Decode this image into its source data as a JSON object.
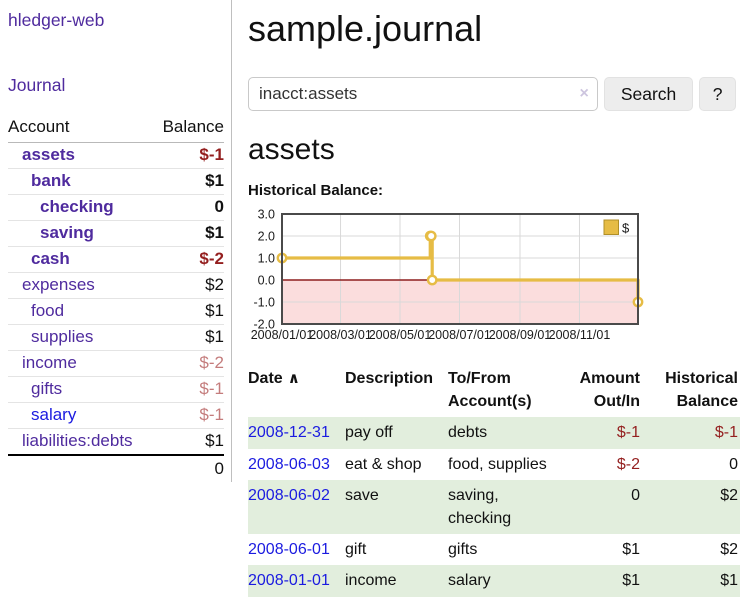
{
  "colors": {
    "purple": "#4f2b9e",
    "blue": "#1b1be0",
    "neg_strong": "#941f1f",
    "neg_soft": "#c47c7c",
    "row_green": "#e2eedd",
    "chart_gold": "#e6bc45",
    "chart_gold_border": "#b08f28",
    "chart_negative_fill": "#fbdddd",
    "chart_zero_line": "#8e1f1f",
    "chart_grid": "#d9d9d9",
    "chart_border": "#4a4a4a"
  },
  "sidebar": {
    "brand": "hledger-web",
    "nav": [
      {
        "label": "Journal"
      }
    ],
    "table": {
      "headers": {
        "account": "Account",
        "balance": "Balance"
      },
      "accounts": [
        {
          "name": "assets",
          "balance": "$-1",
          "indent": 1,
          "bold": true,
          "balance_tone": "neg-strong"
        },
        {
          "name": "bank",
          "balance": "$1",
          "indent": 2,
          "bold": true,
          "balance_tone": "normal"
        },
        {
          "name": "checking",
          "balance": "0",
          "indent": 3,
          "bold": true,
          "balance_tone": "normal"
        },
        {
          "name": "saving",
          "balance": "$1",
          "indent": 3,
          "bold": true,
          "balance_tone": "normal"
        },
        {
          "name": "cash",
          "balance": "$-2",
          "indent": 2,
          "bold": true,
          "balance_tone": "neg-strong"
        },
        {
          "name": "expenses",
          "balance": "$2",
          "indent": 1,
          "bold": false,
          "balance_tone": "normal"
        },
        {
          "name": "food",
          "balance": "$1",
          "indent": 2,
          "bold": false,
          "balance_tone": "normal"
        },
        {
          "name": "supplies",
          "balance": "$1",
          "indent": 2,
          "bold": false,
          "balance_tone": "normal"
        },
        {
          "name": "income",
          "balance": "$-2",
          "indent": 1,
          "bold": false,
          "balance_tone": "neg-soft"
        },
        {
          "name": "gifts",
          "balance": "$-1",
          "indent": 2,
          "bold": false,
          "balance_tone": "neg-soft"
        },
        {
          "name": "salary",
          "balance": "$-1",
          "indent": 2,
          "bold": false,
          "balance_tone": "neg-soft",
          "link_tone": "blue"
        },
        {
          "name": "liabilities:debts",
          "balance": "$1",
          "indent": 1,
          "bold": false,
          "balance_tone": "normal"
        }
      ],
      "total": "0"
    }
  },
  "header": {
    "title": "sample.journal"
  },
  "search": {
    "value": "inacct:assets",
    "clear_icon": "×",
    "submit_label": "Search",
    "help_label": "?"
  },
  "account_page": {
    "title": "assets",
    "chart_heading": "Historical Balance:"
  },
  "chart_data": {
    "type": "line",
    "step": true,
    "title": "Historical Balance",
    "series": [
      {
        "name": "$",
        "x": [
          "2008-01-01",
          "2008-06-01",
          "2008-06-02",
          "2008-06-03",
          "2008-12-31"
        ],
        "values": [
          1,
          2,
          2,
          0,
          -1
        ]
      }
    ],
    "xlim": [
      "2008-01-01",
      "2008-12-31"
    ],
    "ylim": [
      -2,
      3
    ],
    "y_ticks": [
      3.0,
      2.0,
      1.0,
      0.0,
      -1.0,
      -2.0
    ],
    "x_tick_labels": [
      "2008/01/01",
      "2008/03/01",
      "2008/05/01",
      "2008/07/01",
      "2008/09/01",
      "2008/11/01"
    ],
    "legend": {
      "label": "$",
      "position": "top-right"
    },
    "negative_region_shaded": true,
    "grid": true
  },
  "register": {
    "columns": [
      {
        "label": "Date",
        "sort_icon": "∧"
      },
      {
        "label": "Description"
      },
      {
        "label": "To/From Account(s)"
      },
      {
        "label": "Amount Out/In",
        "align": "right"
      },
      {
        "label": "Historical Balance",
        "align": "right"
      }
    ],
    "rows": [
      {
        "date": "2008-12-31",
        "description": "pay off",
        "accounts": "debts",
        "amount": "$-1",
        "amount_tone": "neg",
        "balance": "$-1",
        "balance_tone": "neg",
        "shaded": true
      },
      {
        "date": "2008-06-03",
        "description": "eat & shop",
        "accounts": "food, supplies",
        "amount": "$-2",
        "amount_tone": "neg",
        "balance": "0",
        "balance_tone": "normal",
        "shaded": false
      },
      {
        "date": "2008-06-02",
        "description": "save",
        "accounts": "saving, checking",
        "amount": "0",
        "amount_tone": "normal",
        "balance": "$2",
        "balance_tone": "normal",
        "shaded": true
      },
      {
        "date": "2008-06-01",
        "description": "gift",
        "accounts": "gifts",
        "amount": "$1",
        "amount_tone": "normal",
        "balance": "$2",
        "balance_tone": "normal",
        "shaded": false
      },
      {
        "date": "2008-01-01",
        "description": "income",
        "accounts": "salary",
        "amount": "$1",
        "amount_tone": "normal",
        "balance": "$1",
        "balance_tone": "normal",
        "shaded": true
      }
    ]
  }
}
